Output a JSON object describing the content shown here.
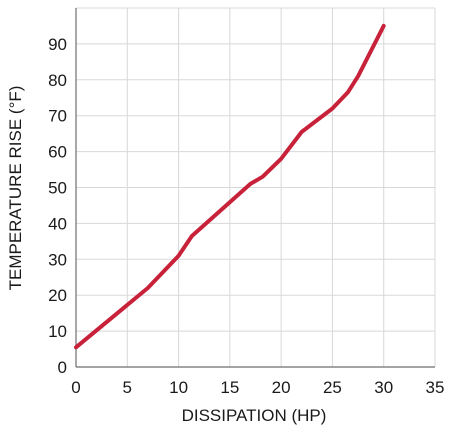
{
  "chart_data": {
    "type": "line",
    "xlabel": "DISSIPATION (HP)",
    "ylabel": "TEMPERATURE RISE (°F)",
    "xlim": [
      0,
      35
    ],
    "ylim": [
      0,
      100
    ],
    "x_ticks": [
      0,
      5,
      10,
      15,
      20,
      25,
      30,
      35
    ],
    "y_ticks": [
      0,
      10,
      20,
      30,
      40,
      50,
      60,
      70,
      80,
      90
    ],
    "grid": true,
    "series": [
      {
        "color": "#c8213a",
        "x": [
          0,
          7,
          10,
          11.3,
          17,
          18.2,
          20,
          22,
          25,
          26.5,
          27.5,
          30
        ],
        "y": [
          5.5,
          22,
          31,
          36.5,
          51,
          53,
          58,
          65.5,
          72,
          76.5,
          81,
          95
        ]
      }
    ]
  }
}
